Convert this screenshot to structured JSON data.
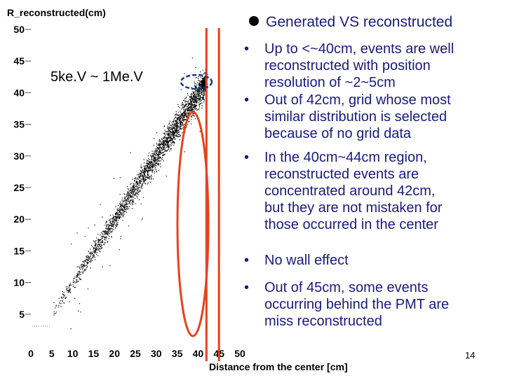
{
  "chart_data": {
    "type": "scatter",
    "ylabel": "R_reconstructed(cm)",
    "xlabel": "Distance from the center [cm]",
    "xlim": [
      0,
      50
    ],
    "ylim": [
      0,
      50
    ],
    "x_ticks": [
      0,
      5,
      10,
      15,
      20,
      25,
      30,
      35,
      40,
      45,
      50
    ],
    "y_ticks": [
      5,
      10,
      15,
      20,
      25,
      30,
      35,
      40,
      45,
      50
    ],
    "energy_label": "5ke.V ~ 1Me.V",
    "trend": {
      "x_start": 5,
      "x_end": 42,
      "slope": 1.0,
      "spread_cm": "2~5"
    },
    "cluster_point": {
      "x": 42,
      "y": 42
    },
    "markers": {
      "vertical_lines_x": [
        42,
        45
      ],
      "highlight_color": "#e8421a",
      "cluster_ring_color": "#1a3a8a",
      "point_color": "#000000"
    }
  },
  "slide": {
    "title": "Generated VS reconstructed",
    "bullets": [
      {
        "mark": "•",
        "lines": [
          "Up to <~40cm, events are well",
          "reconstructed with position",
          "resolution of ~2~5cm"
        ]
      },
      {
        "mark": "•",
        "lines": [
          "Out of 42cm, grid whose most",
          "similar distribution is selected",
          "because of no grid data"
        ]
      },
      {
        "mark": "•",
        "lines": [
          "In the 40cm~44cm region,",
          "reconstructed events are",
          "concentrated around 42cm,",
          "but they are not mistaken for",
          "those occurred in the center"
        ]
      },
      {
        "mark": "•",
        "lines": [
          "No wall effect"
        ]
      },
      {
        "mark": "•",
        "lines": [
          "Out of 45cm, some events",
          "occurring behind the PMT are",
          "miss reconstructed"
        ]
      }
    ],
    "page_number": "14",
    "text_color": "#1a1a80"
  }
}
